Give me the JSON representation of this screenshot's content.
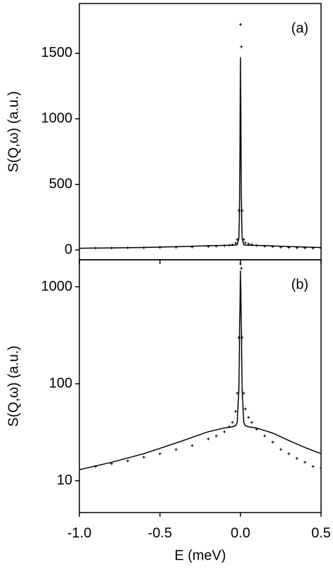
{
  "chart_data": [
    {
      "type": "scatter-line",
      "panel_label": "(a)",
      "y_label": "S(Q,ω) (a.u.)",
      "xlim": [
        -1.0,
        0.5
      ],
      "ylim": [
        -75,
        1880
      ],
      "yticks": [
        0,
        500,
        1000,
        1500
      ],
      "log_y": false,
      "series": [
        {
          "style": "points",
          "color": "#000000",
          "x": [
            -1.0,
            -0.9,
            -0.8,
            -0.7,
            -0.6,
            -0.5,
            -0.4,
            -0.3,
            -0.2,
            -0.15,
            -0.1,
            -0.07,
            -0.05,
            -0.03,
            -0.02,
            -0.01,
            0,
            0.005,
            0.01,
            0.02,
            0.03,
            0.05,
            0.07,
            0.1,
            0.15,
            0.2,
            0.25,
            0.3,
            0.35,
            0.4,
            0.45,
            0.5
          ],
          "values": [
            13,
            14,
            15,
            16,
            17.5,
            19,
            21,
            23,
            27,
            29,
            32,
            36,
            40,
            52,
            80,
            300,
            1720,
            1550,
            300,
            80,
            55,
            45,
            40,
            34,
            29,
            25,
            21,
            19,
            17,
            15.5,
            14,
            13.5
          ]
        },
        {
          "style": "line",
          "color": "#000000",
          "x": [
            -1.0,
            -0.8,
            -0.6,
            -0.4,
            -0.3,
            -0.2,
            -0.1,
            -0.05,
            -0.03,
            -0.02,
            -0.01,
            -0.005,
            0,
            0.005,
            0.01,
            0.02,
            0.03,
            0.05,
            0.1,
            0.2,
            0.3,
            0.4,
            0.5
          ],
          "values": [
            13,
            15.5,
            19,
            24.5,
            28,
            32,
            35,
            36,
            37,
            40,
            90,
            400,
            1470,
            400,
            90,
            40,
            37,
            36,
            35,
            31,
            26,
            22,
            19
          ]
        }
      ]
    },
    {
      "type": "scatter-line",
      "panel_label": "(b)",
      "y_label": "S(Q,ω) (a.u.)",
      "x_label": "E (meV)",
      "xlim": [
        -1.0,
        0.5
      ],
      "xticks": [
        {
          "value": -1.0,
          "label": "-1.0"
        },
        {
          "value": -0.5,
          "label": "-0.5"
        },
        {
          "value": 0,
          "label": "0.0"
        },
        {
          "value": 0.5,
          "label": "0.5"
        }
      ],
      "ylim": [
        4.7,
        1900
      ],
      "yticks": [
        10,
        100,
        1000
      ],
      "log_y": true,
      "series": [
        {
          "style": "points",
          "color": "#000000",
          "x": [
            -1.0,
            -0.9,
            -0.8,
            -0.7,
            -0.6,
            -0.5,
            -0.4,
            -0.3,
            -0.2,
            -0.15,
            -0.1,
            -0.07,
            -0.05,
            -0.03,
            -0.02,
            -0.01,
            0,
            0.005,
            0.01,
            0.02,
            0.03,
            0.05,
            0.07,
            0.1,
            0.15,
            0.2,
            0.25,
            0.3,
            0.35,
            0.4,
            0.45,
            0.5
          ],
          "values": [
            13,
            14,
            15,
            16,
            17.5,
            19,
            21,
            23,
            27,
            29,
            32,
            36,
            40,
            52,
            80,
            300,
            1720,
            1550,
            300,
            80,
            55,
            45,
            40,
            34,
            29,
            25,
            21,
            19,
            17,
            15.5,
            14,
            13.5
          ]
        },
        {
          "style": "line",
          "color": "#000000",
          "x": [
            -1.0,
            -0.8,
            -0.6,
            -0.4,
            -0.3,
            -0.2,
            -0.1,
            -0.05,
            -0.03,
            -0.02,
            -0.01,
            -0.005,
            0,
            0.005,
            0.01,
            0.02,
            0.03,
            0.05,
            0.1,
            0.2,
            0.3,
            0.4,
            0.5
          ],
          "values": [
            13,
            15.5,
            19,
            24.5,
            28,
            32,
            35,
            36,
            37,
            40,
            90,
            400,
            1470,
            400,
            90,
            40,
            37,
            36,
            35,
            31,
            26,
            22,
            19
          ]
        }
      ]
    }
  ]
}
